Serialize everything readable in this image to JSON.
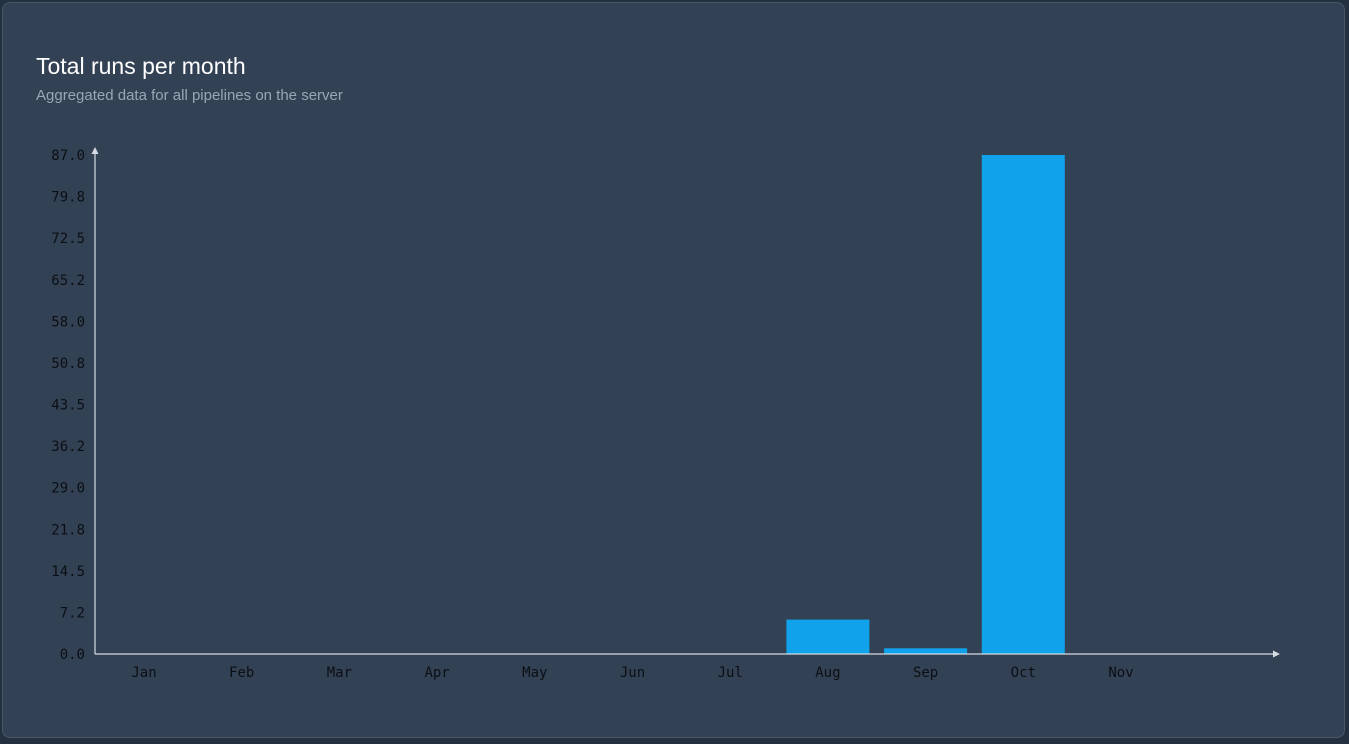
{
  "header": {
    "title": "Total runs per month",
    "subtitle": "Aggregated data for all pipelines on the server"
  },
  "colors": {
    "bar": "#10a2ea",
    "axis": "#d6dbe2",
    "card_background": "#334155"
  },
  "chart_data": {
    "type": "bar",
    "title": "Total runs per month",
    "subtitle": "Aggregated data for all pipelines on the server",
    "categories": [
      "Jan",
      "Feb",
      "Mar",
      "Apr",
      "May",
      "Jun",
      "Jul",
      "Aug",
      "Sep",
      "Oct",
      "Nov"
    ],
    "values": [
      0,
      0,
      0,
      0,
      0,
      0,
      0,
      6,
      1,
      87,
      0
    ],
    "y_ticks": [
      "0.0",
      "7.2",
      "14.5",
      "21.8",
      "29.0",
      "36.2",
      "43.5",
      "50.8",
      "58.0",
      "65.2",
      "72.5",
      "79.8",
      "87.0"
    ],
    "xlabel": "",
    "ylabel": "",
    "ylim": [
      0,
      87
    ],
    "grid": false,
    "legend": "none"
  }
}
